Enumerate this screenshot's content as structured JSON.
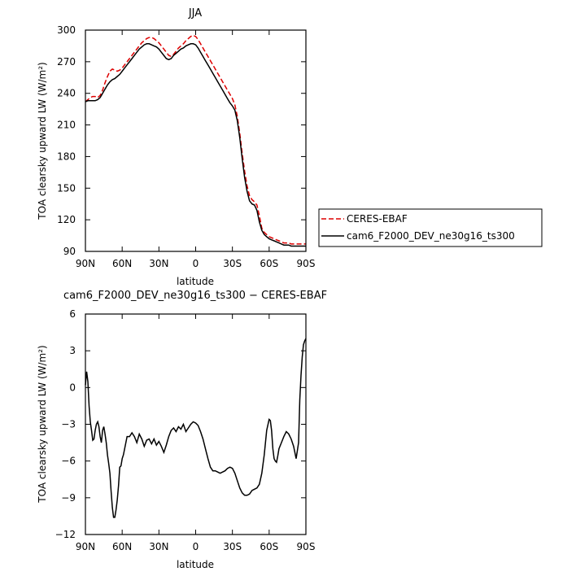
{
  "chart_data": [
    {
      "type": "line",
      "title": "JJA",
      "xlabel": "latitude",
      "ylabel": "TOA clearsky upward LW (W/m²)",
      "xlim": [
        90,
        -90
      ],
      "ylim": [
        90,
        300
      ],
      "xticks": [
        90,
        60,
        30,
        0,
        -30,
        -60,
        -90
      ],
      "xtick_labels": [
        "90N",
        "60N",
        "30N",
        "0",
        "30S",
        "60S",
        "90S"
      ],
      "yticks": [
        90,
        120,
        150,
        180,
        210,
        240,
        270,
        300
      ],
      "ytick_labels": [
        "90",
        "120",
        "150",
        "180",
        "210",
        "240",
        "270",
        "300"
      ],
      "legend_position": "outside-right",
      "series": [
        {
          "name": "CERES-EBAF",
          "color": "#dd0000",
          "dash": true,
          "x": [
            90,
            88,
            86,
            84,
            82,
            80,
            78,
            76,
            74,
            72,
            70,
            68,
            66,
            64,
            62,
            60,
            58,
            56,
            54,
            52,
            50,
            48,
            46,
            44,
            42,
            40,
            38,
            36,
            34,
            32,
            30,
            28,
            26,
            24,
            22,
            20,
            18,
            16,
            14,
            12,
            10,
            8,
            6,
            4,
            2,
            0,
            -2,
            -4,
            -6,
            -8,
            -10,
            -12,
            -14,
            -16,
            -18,
            -20,
            -22,
            -24,
            -26,
            -28,
            -30,
            -32,
            -34,
            -36,
            -38,
            -40,
            -42,
            -44,
            -46,
            -48,
            -50,
            -52,
            -54,
            -56,
            -58,
            -60,
            -62,
            -64,
            -66,
            -68,
            -70,
            -72,
            -74,
            -76,
            -78,
            -80,
            -82,
            -84,
            -86,
            -88,
            -90
          ],
          "y": [
            232,
            234,
            236,
            237,
            237,
            236,
            238,
            243,
            250,
            256,
            261,
            263,
            262,
            261,
            262,
            264,
            267,
            270,
            273,
            276,
            279,
            282,
            285,
            288,
            290,
            292,
            293,
            293,
            292,
            290,
            288,
            285,
            282,
            279,
            276,
            275,
            277,
            280,
            283,
            285,
            287,
            290,
            292,
            294,
            295,
            294,
            291,
            287,
            283,
            279,
            275,
            271,
            267,
            263,
            259,
            255,
            251,
            247,
            243,
            239,
            235,
            229,
            218,
            202,
            183,
            166,
            152,
            143,
            139,
            137,
            134,
            124,
            112,
            108,
            106,
            104,
            103,
            102,
            101,
            100,
            99,
            98,
            98,
            98,
            97,
            97,
            97,
            97,
            97,
            97,
            97
          ]
        },
        {
          "name": "cam6_F2000_DEV_ne30g16_ts300",
          "color": "#000000",
          "dash": false,
          "x": [
            90,
            88,
            86,
            84,
            82,
            80,
            78,
            76,
            74,
            72,
            70,
            68,
            66,
            64,
            62,
            60,
            58,
            56,
            54,
            52,
            50,
            48,
            46,
            44,
            42,
            40,
            38,
            36,
            34,
            32,
            30,
            28,
            26,
            24,
            22,
            20,
            18,
            16,
            14,
            12,
            10,
            8,
            6,
            4,
            2,
            0,
            -2,
            -4,
            -6,
            -8,
            -10,
            -12,
            -14,
            -16,
            -18,
            -20,
            -22,
            -24,
            -26,
            -28,
            -30,
            -32,
            -34,
            -36,
            -38,
            -40,
            -42,
            -44,
            -46,
            -48,
            -50,
            -52,
            -54,
            -56,
            -58,
            -60,
            -62,
            -64,
            -66,
            -68,
            -70,
            -72,
            -74,
            -76,
            -78,
            -80,
            -82,
            -84,
            -86,
            -88,
            -90
          ],
          "y": [
            232,
            233,
            233,
            233,
            233,
            234,
            236,
            240,
            244,
            248,
            251,
            253,
            254,
            256,
            258,
            261,
            264,
            267,
            270,
            273,
            276,
            279,
            282,
            284,
            286,
            287,
            287,
            286,
            285,
            284,
            282,
            279,
            276,
            273,
            272,
            273,
            276,
            278,
            280,
            282,
            283,
            285,
            286,
            287,
            287,
            286,
            283,
            279,
            275,
            271,
            267,
            263,
            259,
            255,
            251,
            247,
            243,
            239,
            235,
            231,
            228,
            224,
            214,
            198,
            178,
            160,
            147,
            138,
            135,
            134,
            129,
            118,
            110,
            106,
            104,
            102,
            101,
            100,
            99,
            98,
            97,
            96,
            96,
            96,
            95,
            95,
            95,
            95,
            95,
            95,
            95
          ]
        }
      ]
    },
    {
      "type": "line",
      "title": "cam6_F2000_DEV_ne30g16_ts300 − CERES-EBAF",
      "xlabel": "latitude",
      "ylabel": "TOA clearsky upward LW (W/m²)",
      "xlim": [
        90,
        -90
      ],
      "ylim": [
        -12,
        6
      ],
      "xticks": [
        90,
        60,
        30,
        0,
        -30,
        -60,
        -90
      ],
      "xtick_labels": [
        "90N",
        "60N",
        "30N",
        "0",
        "30S",
        "60S",
        "90S"
      ],
      "yticks": [
        -12,
        -9,
        -6,
        -3,
        0,
        3,
        6
      ],
      "ytick_labels": [
        "−12",
        "−9",
        "−6",
        "−3",
        "0",
        "3",
        "6"
      ],
      "series": [
        {
          "color": "#000000",
          "x": [
            90,
            89,
            88,
            87,
            86,
            85,
            84,
            83,
            82,
            81,
            80,
            79,
            78,
            77,
            76,
            75,
            74,
            73,
            72,
            71,
            70,
            69,
            68,
            67,
            66,
            65,
            64,
            63,
            62,
            61,
            60,
            59,
            58,
            57,
            56,
            54,
            52,
            50,
            48,
            46,
            44,
            42,
            40,
            38,
            36,
            34,
            32,
            30,
            28,
            26,
            24,
            22,
            20,
            18,
            16,
            14,
            12,
            10,
            8,
            6,
            4,
            2,
            0,
            -2,
            -4,
            -6,
            -8,
            -10,
            -12,
            -14,
            -16,
            -18,
            -20,
            -22,
            -24,
            -26,
            -28,
            -30,
            -32,
            -34,
            -36,
            -38,
            -40,
            -42,
            -44,
            -46,
            -48,
            -50,
            -52,
            -54,
            -56,
            -58,
            -60,
            -61,
            -62,
            -63,
            -64,
            -65,
            -66,
            -67,
            -68,
            -70,
            -72,
            -74,
            -76,
            -78,
            -80,
            -82,
            -84,
            -85,
            -86,
            -87,
            -88,
            -89,
            -90
          ],
          "y": [
            0.2,
            1.3,
            0.5,
            -1.5,
            -2.8,
            -3.5,
            -4.3,
            -4.2,
            -3.5,
            -3.0,
            -2.8,
            -3.2,
            -4.0,
            -4.5,
            -3.5,
            -3.2,
            -3.8,
            -4.5,
            -5.5,
            -6.2,
            -7.0,
            -8.5,
            -9.8,
            -10.6,
            -10.6,
            -10.0,
            -9.2,
            -8.0,
            -6.5,
            -6.4,
            -5.8,
            -5.5,
            -5.0,
            -4.5,
            -4.0,
            -4.0,
            -3.7,
            -4.0,
            -4.5,
            -3.8,
            -4.2,
            -4.8,
            -4.3,
            -4.2,
            -4.6,
            -4.2,
            -4.7,
            -4.4,
            -4.8,
            -5.3,
            -4.7,
            -4.0,
            -3.5,
            -3.3,
            -3.6,
            -3.2,
            -3.4,
            -3.0,
            -3.6,
            -3.3,
            -3.0,
            -2.8,
            -2.9,
            -3.1,
            -3.6,
            -4.2,
            -5.0,
            -5.8,
            -6.5,
            -6.8,
            -6.8,
            -6.9,
            -7.0,
            -6.9,
            -6.8,
            -6.6,
            -6.5,
            -6.6,
            -7.0,
            -7.6,
            -8.2,
            -8.6,
            -8.8,
            -8.8,
            -8.7,
            -8.4,
            -8.3,
            -8.2,
            -7.9,
            -7.0,
            -5.5,
            -3.5,
            -2.6,
            -2.7,
            -3.5,
            -5.0,
            -5.8,
            -6.0,
            -6.1,
            -5.6,
            -5.0,
            -4.5,
            -4.0,
            -3.6,
            -3.8,
            -4.2,
            -4.8,
            -5.8,
            -4.5,
            -1.0,
            1.0,
            2.5,
            3.5,
            3.8,
            4.0
          ]
        }
      ]
    }
  ]
}
